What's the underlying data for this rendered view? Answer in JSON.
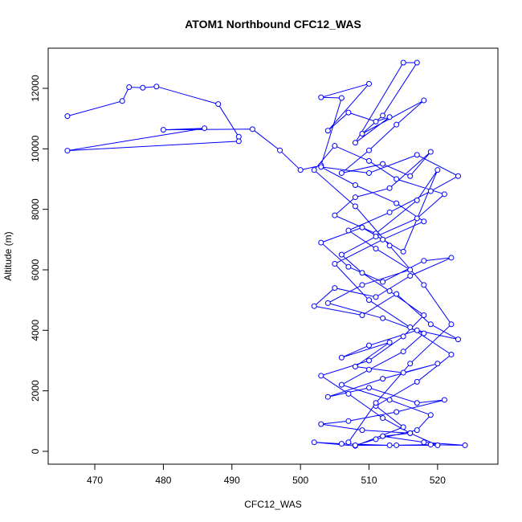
{
  "chart_data": {
    "type": "line",
    "title": "ATOM1 Northbound CFC12_WAS",
    "xlabel": "CFC12_WAS",
    "ylabel": "Altitude (m)",
    "color": "#0000ff",
    "markers": true,
    "x": [
      466,
      474,
      475,
      477,
      479,
      488,
      491,
      491,
      466,
      486,
      480,
      493,
      497,
      500,
      503,
      506,
      503,
      510,
      504,
      507,
      511,
      513,
      508,
      515,
      517,
      512,
      509,
      518,
      514,
      510,
      506,
      512,
      516,
      519,
      513,
      508,
      505,
      511,
      517,
      520,
      515,
      509,
      503,
      507,
      512,
      518,
      522,
      516,
      511,
      505,
      502,
      509,
      514,
      519,
      523,
      517,
      510,
      506,
      513,
      508,
      515,
      520,
      512,
      504,
      510,
      517,
      521,
      514,
      507,
      503,
      509,
      516,
      512,
      518,
      524,
      519,
      513,
      506,
      502,
      508,
      515,
      511,
      517,
      522,
      516,
      510,
      505,
      512,
      518,
      514,
      508,
      503,
      510,
      517,
      523,
      519,
      513,
      507,
      511,
      516,
      509,
      504,
      512,
      518,
      515,
      510,
      506,
      513,
      519,
      517,
      511,
      508,
      514,
      520,
      516,
      512,
      507,
      503,
      510,
      515,
      518,
      513,
      509,
      506,
      511,
      517,
      521,
      514,
      510,
      505,
      502,
      508,
      513,
      518,
      522,
      516,
      511,
      507
    ],
    "values": [
      11080,
      11580,
      12040,
      12020,
      12060,
      11480,
      10400,
      10250,
      9940,
      10680,
      10630,
      10650,
      9950,
      9300,
      9450,
      11680,
      11700,
      12150,
      10600,
      11200,
      10900,
      11050,
      10200,
      12850,
      12850,
      11100,
      10500,
      11600,
      10800,
      9950,
      9200,
      9500,
      9100,
      9900,
      8700,
      8400,
      7800,
      7200,
      8300,
      9300,
      6600,
      7400,
      6900,
      6100,
      5600,
      6300,
      6400,
      5800,
      5100,
      5400,
      4800,
      4500,
      5200,
      4200,
      3700,
      4000,
      3500,
      3100,
      3600,
      2800,
      2600,
      2900,
      2400,
      1800,
      2100,
      1600,
      1700,
      1300,
      1000,
      900,
      700,
      600,
      500,
      300,
      200,
      220,
      200,
      250,
      300,
      180,
      800,
      1500,
      2300,
      3200,
      4100,
      5000,
      6200,
      7000,
      7600,
      8200,
      8800,
      9400,
      9200,
      9800,
      9100,
      8600,
      7900,
      7300,
      6700,
      6000,
      5500,
      4900,
      4400,
      3900,
      3300,
      2700,
      2200,
      1700,
      1200,
      700,
      400,
      200,
      200,
      200,
      600,
      1100,
      1900,
      2500,
      3000,
      3800,
      4500,
      5300,
      5900,
      6500,
      7100,
      7700,
      8500,
      9000,
      9600,
      10100,
      9300,
      8100,
      6800,
      5500,
      4200,
      2900,
      1600,
      300
    ],
    "xlim": [
      463.2,
      528.8
    ],
    "ylim": [
      -425,
      13327
    ],
    "xticks": [
      470,
      480,
      490,
      500,
      510,
      520
    ],
    "yticks": [
      0,
      2000,
      4000,
      6000,
      8000,
      10000,
      12000
    ]
  }
}
